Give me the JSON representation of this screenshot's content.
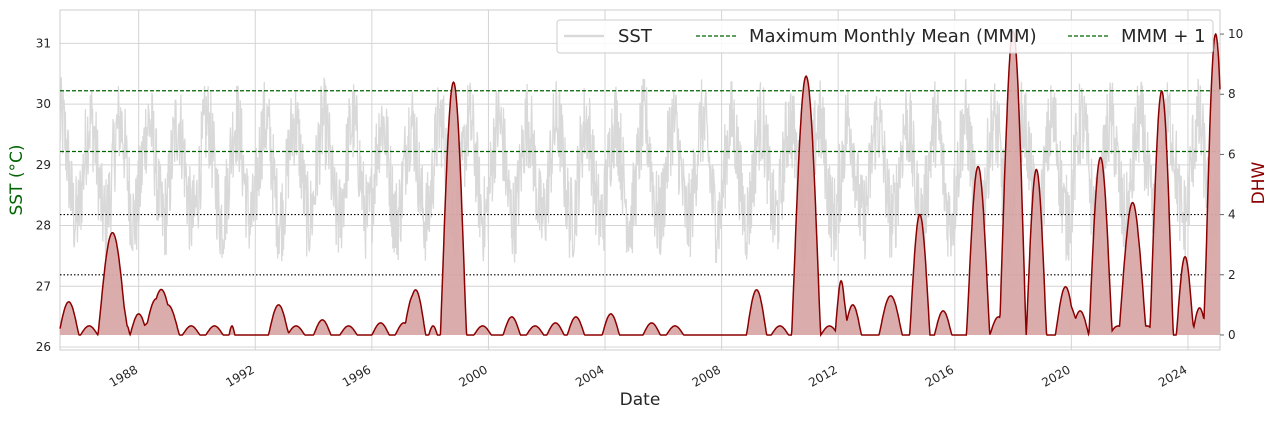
{
  "chart_data": {
    "type": "line",
    "xlabel": "Date",
    "ylabel_left": "SST (°C)",
    "ylabel_right": "DHW",
    "x_ticks": [
      "1988",
      "1992",
      "1996",
      "2000",
      "2004",
      "2008",
      "2012",
      "2016",
      "2020",
      "2024"
    ],
    "y_left_ticks": [
      "26",
      "27",
      "28",
      "29",
      "30",
      "31"
    ],
    "y_right_ticks": [
      "0",
      "2",
      "4",
      "6",
      "8",
      "10"
    ],
    "xlim": [
      1985.3,
      2025.1
    ],
    "ylim_left": [
      25.95,
      31.55
    ],
    "ylim_right": [
      -0.5,
      10.8
    ],
    "grid": true,
    "legend_position": "top-right",
    "legend": [
      {
        "label": "SST",
        "style": "solid",
        "color": "#d9d9d9"
      },
      {
        "label": "Maximum Monthly Mean (MMM)",
        "style": "dashed",
        "color": "#006400"
      },
      {
        "label": "MMM + 1",
        "style": "dashed",
        "color": "#006400"
      }
    ],
    "reference_lines_left_axis": [
      {
        "y": 30.22,
        "style": "dashed",
        "color": "#006400"
      },
      {
        "y": 29.22,
        "style": "dashed",
        "color": "#006400"
      }
    ],
    "reference_lines_right_axis": [
      {
        "y": 4,
        "style": "dotted",
        "color": "#000000"
      },
      {
        "y": 2,
        "style": "dotted",
        "color": "#000000"
      }
    ],
    "series": [
      {
        "name": "SST",
        "axis": "left",
        "color": "#d9d9d9",
        "baseline": 28.9,
        "season_amplitude": 0.8,
        "noise_amplitude": 0.75,
        "min": 26.3,
        "max": 31.2
      },
      {
        "name": "DHW",
        "axis": "right",
        "color": "#8b0000",
        "fill": "#d9a8a8",
        "events": [
          [
            1985.6,
            0.35,
            1.1
          ],
          [
            1986.3,
            0.3,
            0.3
          ],
          [
            1987.1,
            0.5,
            3.4
          ],
          [
            1987.6,
            0.1,
            0.3
          ],
          [
            1988.0,
            0.3,
            0.7
          ],
          [
            1988.6,
            0.4,
            1.2
          ],
          [
            1989.0,
            0.4,
            1.0
          ],
          [
            1989.8,
            0.3,
            0.3
          ],
          [
            1990.6,
            0.3,
            0.3
          ],
          [
            1991.2,
            0.1,
            0.3
          ],
          [
            1992.8,
            0.35,
            1.0
          ],
          [
            1993.4,
            0.3,
            0.3
          ],
          [
            1994.3,
            0.3,
            0.5
          ],
          [
            1995.2,
            0.3,
            0.3
          ],
          [
            1996.3,
            0.3,
            0.4
          ],
          [
            1997.1,
            0.3,
            0.4
          ],
          [
            1997.5,
            0.35,
            1.5
          ],
          [
            1998.1,
            0.15,
            0.3
          ],
          [
            1998.8,
            0.45,
            8.4
          ],
          [
            1999.8,
            0.3,
            0.3
          ],
          [
            2000.8,
            0.3,
            0.6
          ],
          [
            2001.6,
            0.3,
            0.3
          ],
          [
            2002.3,
            0.3,
            0.4
          ],
          [
            2003.0,
            0.3,
            0.6
          ],
          [
            2004.2,
            0.3,
            0.7
          ],
          [
            2005.6,
            0.3,
            0.4
          ],
          [
            2006.4,
            0.3,
            0.3
          ],
          [
            2009.2,
            0.35,
            1.5
          ],
          [
            2010.0,
            0.3,
            0.3
          ],
          [
            2010.9,
            0.5,
            8.6
          ],
          [
            2011.7,
            0.3,
            0.3
          ],
          [
            2012.1,
            0.2,
            1.8
          ],
          [
            2012.5,
            0.3,
            1.0
          ],
          [
            2013.8,
            0.4,
            1.3
          ],
          [
            2014.8,
            0.35,
            4.0
          ],
          [
            2015.6,
            0.3,
            0.8
          ],
          [
            2016.8,
            0.4,
            5.6
          ],
          [
            2017.5,
            0.3,
            0.6
          ],
          [
            2018.0,
            0.45,
            10.1
          ],
          [
            2018.8,
            0.35,
            5.5
          ],
          [
            2019.8,
            0.35,
            1.6
          ],
          [
            2020.3,
            0.3,
            0.8
          ],
          [
            2021.0,
            0.4,
            5.9
          ],
          [
            2021.6,
            0.3,
            0.3
          ],
          [
            2022.1,
            0.45,
            4.4
          ],
          [
            2022.6,
            0.3,
            0.3
          ],
          [
            2023.1,
            0.4,
            8.1
          ],
          [
            2023.9,
            0.3,
            2.6
          ],
          [
            2024.4,
            0.25,
            0.9
          ],
          [
            2024.95,
            0.4,
            10.0
          ]
        ]
      }
    ]
  }
}
